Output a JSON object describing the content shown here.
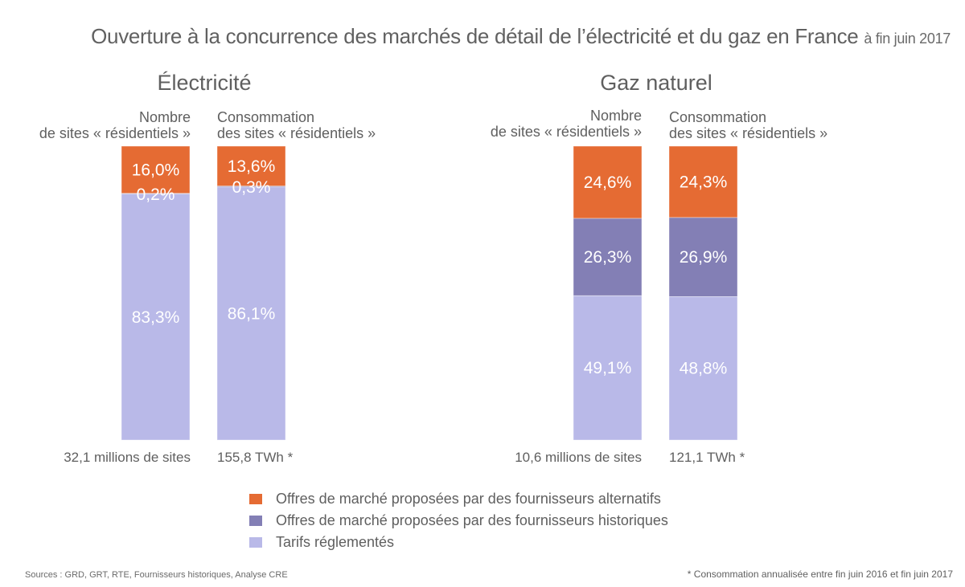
{
  "title": {
    "main": "Ouverture à la concurrence des marchés de détail de l’électricité et du gaz en France",
    "sub": "à fin juin 2017"
  },
  "colors": {
    "alternatifs": "#E56B33",
    "historiques": "#837FB5",
    "tarifs": "#B9B9E8"
  },
  "chart_data": {
    "type": "bar",
    "stacked": true,
    "title": "Ouverture à la concurrence des marchés de détail de l’électricité et du gaz en France à fin juin 2017",
    "ylim": [
      0,
      100
    ],
    "unit": "%",
    "legend_position": "bottom",
    "series_names": [
      "Offres de marché proposées par des fournisseurs alternatifs",
      "Offres de marché proposées par des fournisseurs historiques",
      "Tarifs réglementés"
    ],
    "groups": [
      {
        "name": "Électricité",
        "bars": [
          {
            "label_line1": "Nombre",
            "label_line2": "de sites « résidentiels »",
            "total_label": "32,1 millions de sites",
            "values": [
              16.0,
              0.2,
              83.3
            ],
            "value_labels": [
              "16,0%",
              "0,2%",
              "83,3%"
            ]
          },
          {
            "label_line1": "Consommation",
            "label_line2": "des sites « résidentiels »",
            "total_label": "155,8 TWh *",
            "values": [
              13.6,
              0.3,
              86.1
            ],
            "value_labels": [
              "13,6%",
              "0,3%",
              "86,1%"
            ]
          }
        ]
      },
      {
        "name": "Gaz naturel",
        "bars": [
          {
            "label_line1": "Nombre",
            "label_line2": "de sites « résidentiels »",
            "total_label": "10,6 millions de sites",
            "values": [
              24.6,
              26.3,
              49.1
            ],
            "value_labels": [
              "24,6%",
              "26,3%",
              "49,1%"
            ]
          },
          {
            "label_line1": "Consommation",
            "label_line2": "des sites « résidentiels »",
            "total_label": "121,1 TWh *",
            "values": [
              24.3,
              26.9,
              48.8
            ],
            "value_labels": [
              "24,3%",
              "26,9%",
              "48,8%"
            ]
          }
        ]
      }
    ]
  },
  "legend": [
    {
      "label": "Offres de marché proposées par des fournisseurs alternatifs",
      "color": "#E56B33"
    },
    {
      "label": "Offres de marché proposées par des fournisseurs historiques",
      "color": "#837FB5"
    },
    {
      "label": "Tarifs réglementés",
      "color": "#B9B9E8"
    }
  ],
  "source": "Sources : GRD, GRT, RTE, Fournisseurs historiques, Analyse CRE",
  "footnote": "* Consommation annualisée entre fin juin 2016 et fin juin 2017"
}
